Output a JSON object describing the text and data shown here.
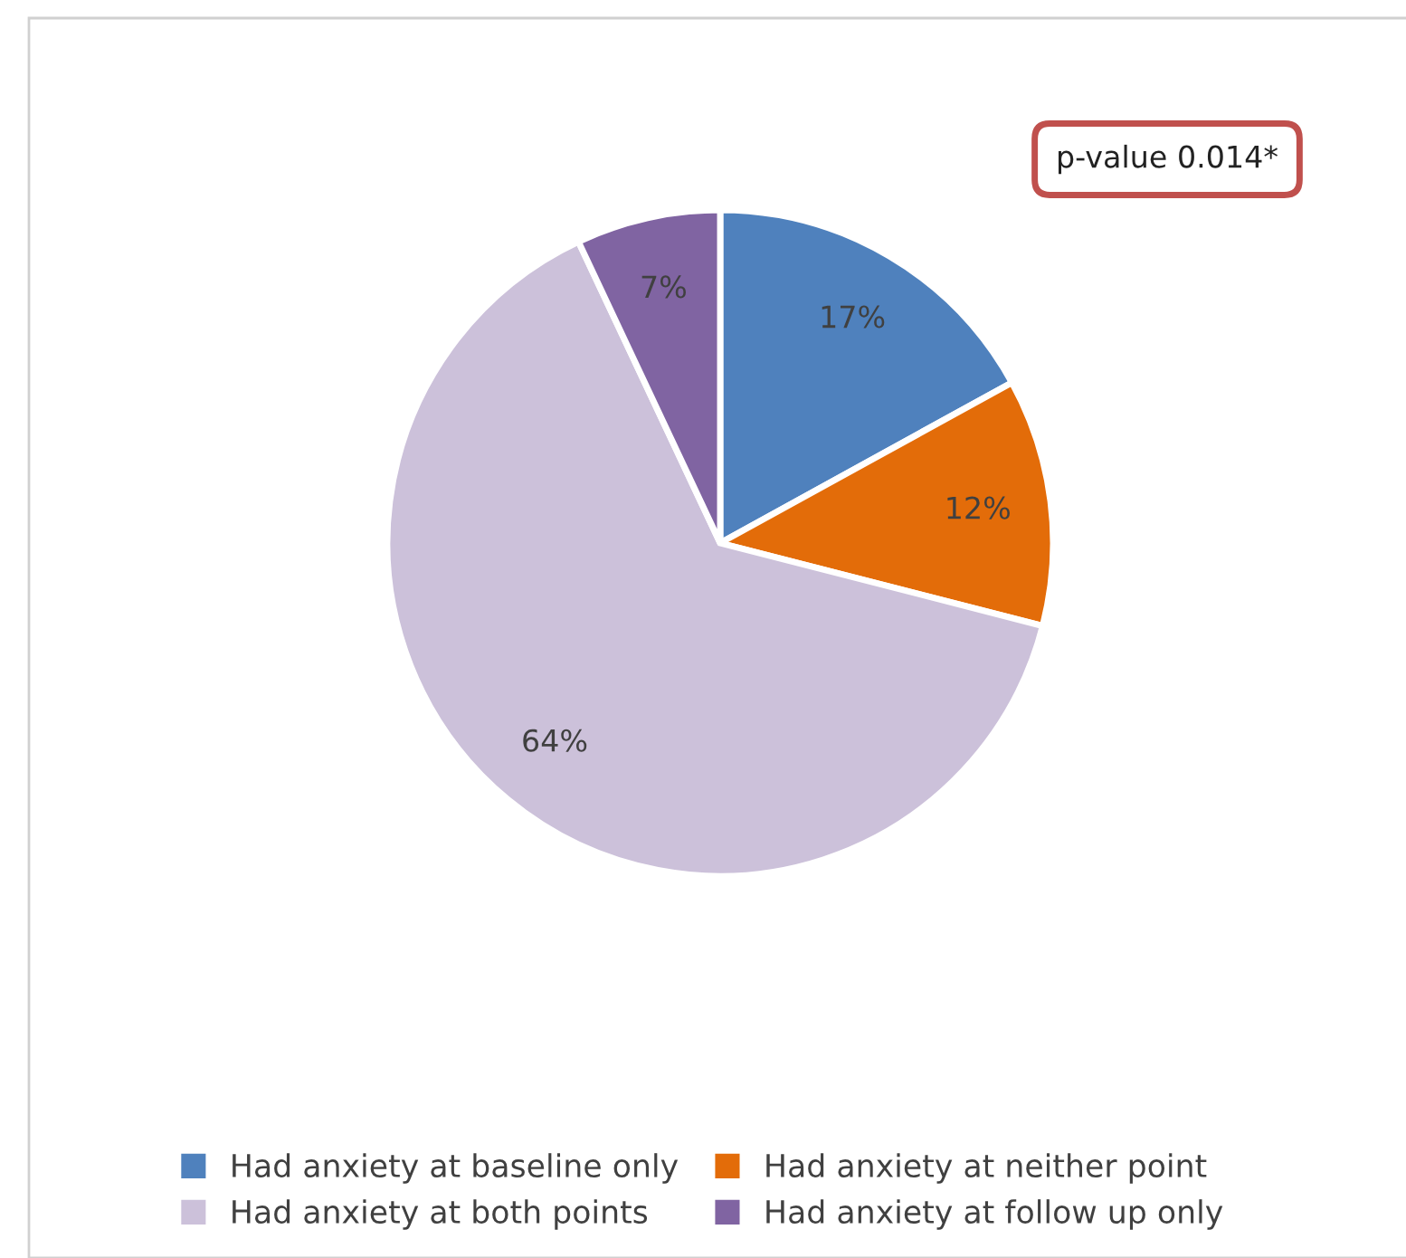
{
  "chart_data": {
    "type": "pie",
    "categories": [
      "Had anxiety at baseline only",
      "Had anxiety at neither point",
      "Had anxiety at both points",
      "Had anxiety at follow up only"
    ],
    "values": [
      17,
      12,
      64,
      7
    ],
    "value_labels": [
      "17%",
      "12%",
      "64%",
      "7%"
    ],
    "colors": [
      "#4f81bd",
      "#e36c09",
      "#ccc1da",
      "#8064a2"
    ],
    "annotations": [
      "p-value 0.014*"
    ],
    "legend": "bottom"
  }
}
